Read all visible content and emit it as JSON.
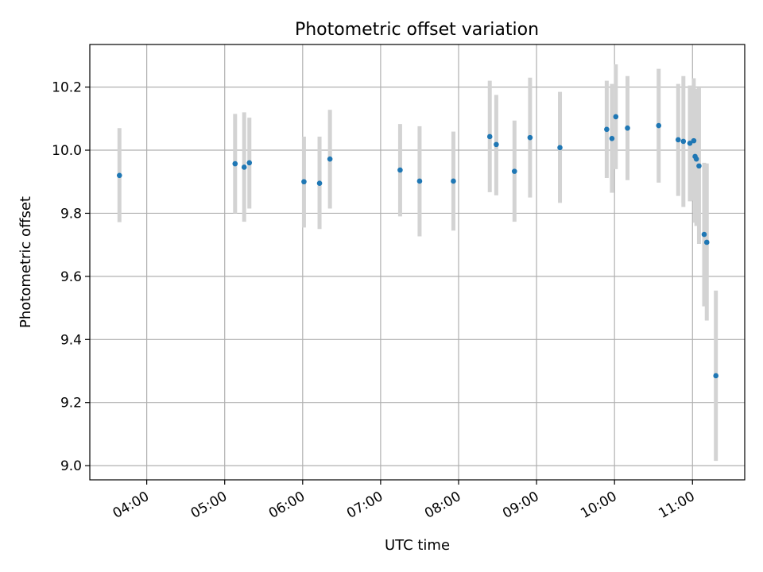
{
  "chart_data": {
    "type": "scatter",
    "title": "Photometric offset variation",
    "xlabel": "UTC time",
    "ylabel": "Photometric offset",
    "xlim_min": [
      3.27,
      11.67
    ],
    "ylim": [
      8.955,
      10.335
    ],
    "grid": true,
    "x_ticks": [
      {
        "label": "04:00",
        "value": 4
      },
      {
        "label": "05:00",
        "value": 5
      },
      {
        "label": "06:00",
        "value": 6
      },
      {
        "label": "07:00",
        "value": 7
      },
      {
        "label": "08:00",
        "value": 8
      },
      {
        "label": "09:00",
        "value": 9
      },
      {
        "label": "10:00",
        "value": 10
      },
      {
        "label": "11:00",
        "value": 11
      }
    ],
    "y_ticks": [
      {
        "label": "9.0",
        "value": 9.0
      },
      {
        "label": "9.2",
        "value": 9.2
      },
      {
        "label": "9.4",
        "value": 9.4
      },
      {
        "label": "9.6",
        "value": 9.6
      },
      {
        "label": "9.8",
        "value": 9.8
      },
      {
        "label": "10.0",
        "value": 10.0
      },
      {
        "label": "10.2",
        "value": 10.2
      }
    ],
    "colors": {
      "marker": "#1f77b4",
      "errorbar": "#d3d3d3",
      "grid": "#b0b0b0"
    },
    "points": [
      {
        "x": "03:39",
        "y": 9.92,
        "err_low": 9.772,
        "err_high": 10.07
      },
      {
        "x": "05:08",
        "y": 9.957,
        "err_low": 9.8,
        "err_high": 10.115
      },
      {
        "x": "05:15",
        "y": 9.946,
        "err_low": 9.773,
        "err_high": 10.12
      },
      {
        "x": "05:19",
        "y": 9.96,
        "err_low": 9.815,
        "err_high": 10.103
      },
      {
        "x": "06:01",
        "y": 9.9,
        "err_low": 9.755,
        "err_high": 10.043
      },
      {
        "x": "06:13",
        "y": 9.895,
        "err_low": 9.75,
        "err_high": 10.043
      },
      {
        "x": "06:21",
        "y": 9.972,
        "err_low": 9.815,
        "err_high": 10.128
      },
      {
        "x": "07:15",
        "y": 9.937,
        "err_low": 9.79,
        "err_high": 10.083
      },
      {
        "x": "07:30",
        "y": 9.902,
        "err_low": 9.727,
        "err_high": 10.076
      },
      {
        "x": "07:56",
        "y": 9.902,
        "err_low": 9.745,
        "err_high": 10.059
      },
      {
        "x": "08:24",
        "y": 10.043,
        "err_low": 9.867,
        "err_high": 10.22
      },
      {
        "x": "08:29",
        "y": 10.018,
        "err_low": 9.857,
        "err_high": 10.175
      },
      {
        "x": "08:43",
        "y": 9.933,
        "err_low": 9.773,
        "err_high": 10.094
      },
      {
        "x": "08:55",
        "y": 10.04,
        "err_low": 9.85,
        "err_high": 10.23
      },
      {
        "x": "09:18",
        "y": 10.008,
        "err_low": 9.833,
        "err_high": 10.185
      },
      {
        "x": "09:54",
        "y": 10.066,
        "err_low": 9.912,
        "err_high": 10.22
      },
      {
        "x": "09:58",
        "y": 10.037,
        "err_low": 9.865,
        "err_high": 10.21
      },
      {
        "x": "10:01",
        "y": 10.106,
        "err_low": 9.94,
        "err_high": 10.272
      },
      {
        "x": "10:10",
        "y": 10.07,
        "err_low": 9.905,
        "err_high": 10.235
      },
      {
        "x": "10:34",
        "y": 10.078,
        "err_low": 9.897,
        "err_high": 10.258
      },
      {
        "x": "10:49",
        "y": 10.033,
        "err_low": 9.855,
        "err_high": 10.21
      },
      {
        "x": "10:53",
        "y": 10.028,
        "err_low": 9.82,
        "err_high": 10.235
      },
      {
        "x": "10:58",
        "y": 10.022,
        "err_low": 9.838,
        "err_high": 10.205
      },
      {
        "x": "11:01",
        "y": 10.03,
        "err_low": 9.84,
        "err_high": 10.228
      },
      {
        "x": "11:02",
        "y": 9.98,
        "err_low": 9.77,
        "err_high": 10.195
      },
      {
        "x": "11:03",
        "y": 9.972,
        "err_low": 9.76,
        "err_high": 10.19
      },
      {
        "x": "11:05",
        "y": 9.95,
        "err_low": 9.703,
        "err_high": 10.197
      },
      {
        "x": "11:09",
        "y": 9.733,
        "err_low": 9.505,
        "err_high": 9.96
      },
      {
        "x": "11:11",
        "y": 9.708,
        "err_low": 9.46,
        "err_high": 9.958
      },
      {
        "x": "11:18",
        "y": 9.285,
        "err_low": 9.015,
        "err_high": 9.555
      }
    ]
  }
}
